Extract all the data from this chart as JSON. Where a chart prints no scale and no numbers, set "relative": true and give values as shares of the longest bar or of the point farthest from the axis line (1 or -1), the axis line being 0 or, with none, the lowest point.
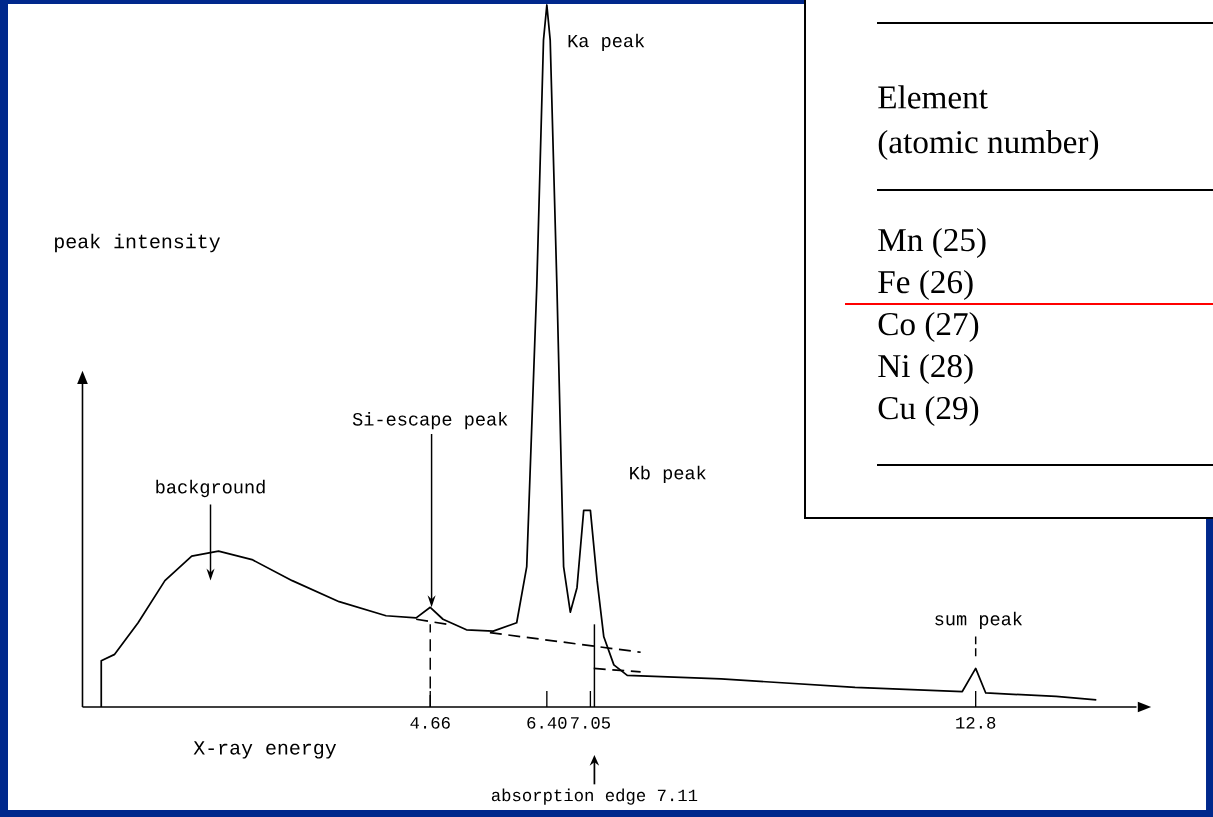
{
  "chart_data": {
    "type": "line",
    "relative": true,
    "xlabel": "X-ray energy",
    "ylabel": "peak intensity",
    "xlim": [
      -0.53,
      15.2
    ],
    "xticks": [
      4.66,
      {
        "value": 6.4,
        "label": "6.40"
      },
      7.05,
      12.8
    ],
    "series": [
      {
        "color": "#000000",
        "line_style": "solid",
        "x": [
          -0.25,
          -0.25,
          -0.05,
          0.3,
          0.7,
          1.1,
          1.5,
          2.0,
          2.6,
          3.3,
          4.0,
          4.45,
          4.66,
          4.85,
          5.2,
          5.6,
          5.95,
          6.1,
          6.25,
          6.35,
          6.4,
          6.45,
          6.55,
          6.65,
          6.75,
          6.85,
          6.95,
          7.05,
          7.15,
          7.25,
          7.4,
          7.6,
          9,
          11,
          12.6,
          12.8,
          12.95,
          14,
          14.6
        ],
        "values": [
          0,
          0.066,
          0.075,
          0.12,
          0.18,
          0.215,
          0.222,
          0.21,
          0.18,
          0.15,
          0.13,
          0.127,
          0.142,
          0.125,
          0.11,
          0.108,
          0.12,
          0.2,
          0.6,
          0.95,
          1,
          0.95,
          0.6,
          0.2,
          0.135,
          0.17,
          0.28,
          0.28,
          0.18,
          0.1,
          0.06,
          0.045,
          0.04,
          0.028,
          0.022,
          0.055,
          0.02,
          0.015,
          0.01
        ]
      },
      {
        "color": "#000000",
        "line_style": "dashed",
        "x": [
          4.45,
          4.9
        ],
        "values": [
          0.125,
          0.118
        ]
      },
      {
        "color": "#000000",
        "line_style": "dashed",
        "x": [
          5.55,
          7.8
        ],
        "values": [
          0.106,
          0.078
        ]
      },
      {
        "color": "#000000",
        "line_style": "dashed",
        "x": [
          7.1,
          7.8
        ],
        "values": [
          0.055,
          0.05
        ]
      }
    ],
    "ref_lines": [
      {
        "axis": "x",
        "value": 4.66,
        "line_style": "dashed"
      },
      {
        "axis": "x",
        "value": 7.11,
        "line_style": "solid",
        "label": "absorption edge  7.11"
      }
    ],
    "annotations": [
      {
        "text": "Ka peak",
        "x": 6.4,
        "y": 1
      },
      {
        "text": "Kb peak",
        "x": 7.05,
        "y": 0.28
      },
      {
        "text": "Si-escape peak",
        "x": 4.66,
        "y": 0.142
      },
      {
        "text": "background",
        "x": 1.5,
        "y": 0.222
      },
      {
        "text": "sum peak",
        "x": 12.8,
        "y": 0.055
      },
      "Element",
      "(atomic number)",
      "Mn (25)",
      "Fe (26)",
      "Co (27)",
      "Ni (28)",
      "Cu (29)"
    ]
  }
}
